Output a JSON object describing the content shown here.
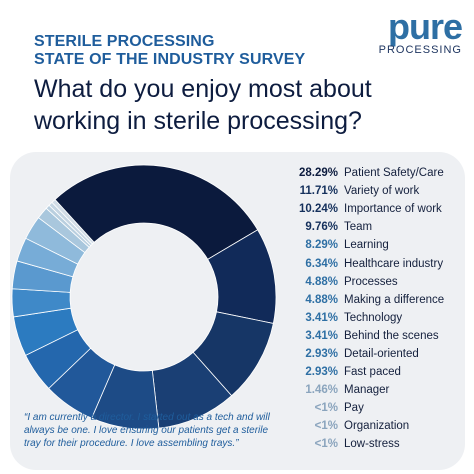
{
  "logo": {
    "word": "pure",
    "sub": "PROCESSING"
  },
  "header": {
    "line1": "STERILE PROCESSING",
    "line2": "STATE OF THE INDUSTRY SURVEY",
    "headline": "What do you enjoy most about working in sterile processing?"
  },
  "quote": "“I am currently a director. I started out as a tech and will always be one. I love ensuring our patients get a sterile tray for their procedure. I love assembling trays.”",
  "chart_data": {
    "type": "pie",
    "style": "donut",
    "legend_position": "right",
    "categories": [
      "Patient Safety/Care",
      "Variety of work",
      "Importance of work",
      "Team",
      "Learning",
      "Healthcare industry",
      "Processes",
      "Making a difference",
      "Technology",
      "Behind the scenes",
      "Detail-oriented",
      "Fast paced",
      "Manager",
      "Pay",
      "Organization",
      "Low-stress"
    ],
    "values": [
      28.29,
      11.71,
      10.24,
      9.76,
      8.29,
      6.34,
      4.88,
      4.88,
      3.41,
      3.41,
      2.93,
      2.93,
      1.46,
      0.5,
      0.5,
      0.5
    ],
    "value_labels": [
      "28.29%",
      "11.71%",
      "10.24%",
      "9.76%",
      "8.29%",
      "6.34%",
      "4.88%",
      "4.88%",
      "3.41%",
      "3.41%",
      "2.93%",
      "2.93%",
      "1.46%",
      "<1%",
      "<1%",
      "<1%"
    ],
    "colors": [
      "#0b1a3d",
      "#112a59",
      "#163666",
      "#1a3f74",
      "#1d4b86",
      "#21589a",
      "#2467ad",
      "#2c7bc0",
      "#3f89c8",
      "#5a99cf",
      "#77acd7",
      "#8fbadb",
      "#a9c7dd",
      "#b9cfdf",
      "#c6d6e3",
      "#d2dde7"
    ]
  }
}
